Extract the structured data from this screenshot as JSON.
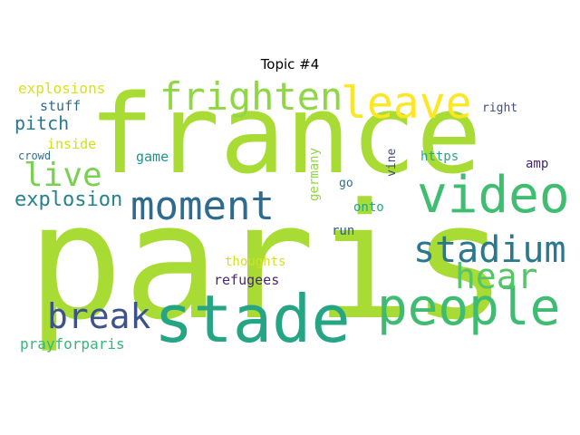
{
  "title": "Topic #4",
  "words": [
    {
      "text": "paris",
      "color": "#a8dc34"
    },
    {
      "text": "france",
      "color": "#a8dc34"
    },
    {
      "text": "stade",
      "color": "#25a584"
    },
    {
      "text": "video",
      "color": "#3fbd70"
    },
    {
      "text": "people",
      "color": "#3fbc72"
    },
    {
      "text": "leave",
      "color": "#fde725"
    },
    {
      "text": "frighten",
      "color": "#8fd744"
    },
    {
      "text": "moment",
      "color": "#2f6b8e"
    },
    {
      "text": "stadium",
      "color": "#2a788e"
    },
    {
      "text": "break",
      "color": "#3b528b"
    },
    {
      "text": "hear",
      "color": "#54c568"
    },
    {
      "text": "live",
      "color": "#7ad151"
    },
    {
      "text": "explosion",
      "color": "#26828e"
    },
    {
      "text": "pitch",
      "color": "#2a788e"
    },
    {
      "text": "explosions",
      "color": "#d8e219"
    },
    {
      "text": "stuff",
      "color": "#31688e"
    },
    {
      "text": "inside",
      "color": "#d0e11c"
    },
    {
      "text": "crowd",
      "color": "#2c728e"
    },
    {
      "text": "game",
      "color": "#21918c"
    },
    {
      "text": "germany",
      "color": "#90d743"
    },
    {
      "text": "vine",
      "color": "#3e4989"
    },
    {
      "text": "right",
      "color": "#3e4c8a"
    },
    {
      "text": "https",
      "color": "#22a884"
    },
    {
      "text": "amp",
      "color": "#482475"
    },
    {
      "text": "go",
      "color": "#2c728e"
    },
    {
      "text": "onto",
      "color": "#21a685"
    },
    {
      "text": "run",
      "color": "#38598c"
    },
    {
      "text": "thoughts",
      "color": "#d2e21b"
    },
    {
      "text": "refugees",
      "color": "#482878"
    },
    {
      "text": "prayforparis",
      "color": "#35b779"
    }
  ]
}
